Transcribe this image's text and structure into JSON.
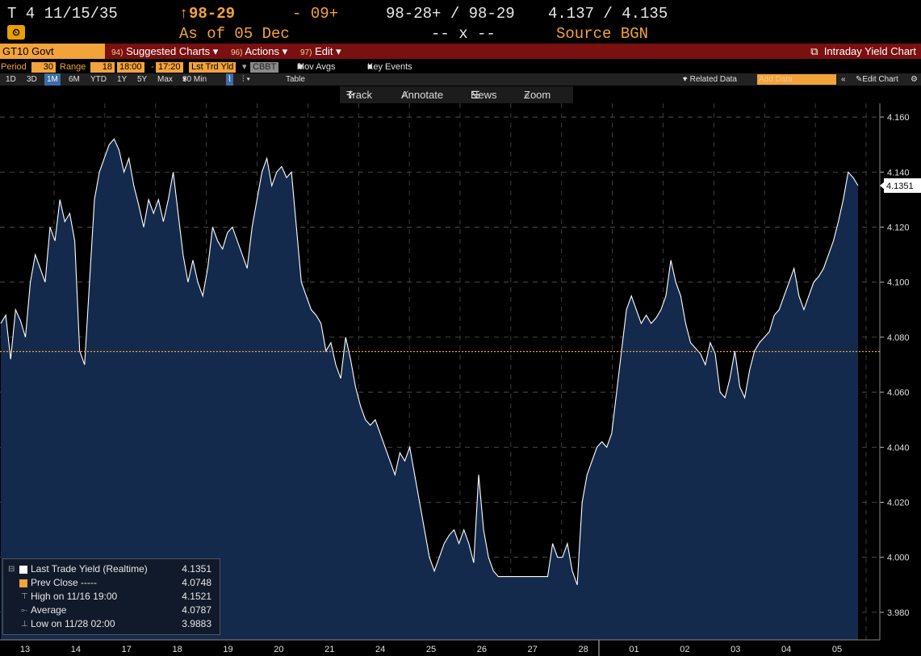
{
  "header": {
    "security": "T 4 11/15/35",
    "price": "98-29",
    "change": "09+",
    "bid_ask": "98-28+ / 98-29",
    "yield_bid_ask": "4.137 / 4.135",
    "as_of": "As of 05 Dec",
    "size": "-- x --",
    "source": "Source BGN",
    "up_arrow": "↑"
  },
  "function_bar": {
    "ticker": "GT10 Govt",
    "suggested_num": "94)",
    "suggested": "Suggested Charts",
    "actions_num": "96)",
    "actions": "Actions",
    "edit_num": "97)",
    "edit": "Edit",
    "title": "Intraday Yield Chart"
  },
  "params": {
    "period_label": "Period",
    "period_value": "30",
    "range_label": "Range",
    "range_value": "18",
    "range_from": "18:00",
    "range_to": "17:20",
    "field": "Lst Trd Yld",
    "source": "CBBT",
    "mov_avgs": "Mov Avgs",
    "key_events": "Key Events"
  },
  "timebar": {
    "items": [
      "1D",
      "3D",
      "1M",
      "6M",
      "YTD",
      "1Y",
      "5Y",
      "Max"
    ],
    "selected": "1M",
    "interval": "30 Min",
    "table": "Table",
    "related": "+ Related Data",
    "add_data": "Add Data",
    "edit_chart": "Edit Chart"
  },
  "tools": {
    "track": "Track",
    "annotate": "Annotate",
    "news": "News",
    "zoom": "Zoom"
  },
  "legend": {
    "last_label": "Last Trade Yield (Realtime)",
    "last_value": "4.1351",
    "prev_label": "Prev Close -----",
    "prev_value": "4.0748",
    "high_label": "High on 11/16 19:00",
    "high_value": "4.1521",
    "avg_label": "Average",
    "avg_value": "4.0787",
    "low_label": "Low on 11/28 02:00",
    "low_value": "3.9883"
  },
  "colors": {
    "line": "#ffffff",
    "fill": "#142a4d",
    "prev_close": "#f2a33a",
    "accent": "#f2a33a",
    "bar": "#7a1010"
  },
  "chart_data": {
    "type": "area",
    "ylim": [
      3.97,
      4.165
    ],
    "yticks": [
      3.98,
      4.0,
      4.02,
      4.04,
      4.06,
      4.08,
      4.1,
      4.12,
      4.14,
      4.16
    ],
    "x_labels": [
      "13",
      "14",
      "17",
      "18",
      "19",
      "20",
      "21",
      "24",
      "25",
      "26",
      "27",
      "28",
      "01",
      "02",
      "03",
      "04",
      "05"
    ],
    "prev_close": 4.0748,
    "last": 4.1351,
    "series": [
      {
        "values": [
          4.085,
          4.088,
          4.072,
          4.09,
          4.086,
          4.08,
          4.1,
          4.11,
          4.105,
          4.1,
          4.12,
          4.115,
          4.13,
          4.122,
          4.125,
          4.115,
          4.075,
          4.07,
          4.1,
          4.13,
          4.14,
          4.145,
          4.15,
          4.152,
          4.148,
          4.14,
          4.145,
          4.135,
          4.128,
          4.12,
          4.13,
          4.125,
          4.13,
          4.122,
          4.13,
          4.14,
          4.125,
          4.11,
          4.1,
          4.108,
          4.1,
          4.095,
          4.105,
          4.12,
          4.115,
          4.112,
          4.118,
          4.12,
          4.115,
          4.11,
          4.105,
          4.12,
          4.13,
          4.14,
          4.145,
          4.135,
          4.14,
          4.142,
          4.138,
          4.14,
          4.12,
          4.1,
          4.095,
          4.09,
          4.088,
          4.085,
          4.075,
          4.078,
          4.07,
          4.065,
          4.08,
          4.072,
          4.062,
          4.055,
          4.05,
          4.048,
          4.05,
          4.045,
          4.04,
          4.035,
          4.03,
          4.038,
          4.035,
          4.04,
          4.03,
          4.02,
          4.01,
          4.0,
          3.995,
          4.0,
          4.005,
          4.008,
          4.01,
          4.005,
          4.01,
          4.005,
          3.998,
          4.03,
          4.01,
          4.0,
          3.995,
          3.993,
          3.993,
          3.993,
          3.993,
          3.993,
          3.993,
          3.993,
          3.993,
          3.993,
          3.993,
          3.993,
          4.005,
          4.0,
          4.0,
          4.005,
          3.995,
          3.99,
          4.02,
          4.03,
          4.035,
          4.04,
          4.042,
          4.04,
          4.045,
          4.06,
          4.075,
          4.09,
          4.095,
          4.09,
          4.085,
          4.088,
          4.085,
          4.087,
          4.09,
          4.095,
          4.108,
          4.1,
          4.095,
          4.085,
          4.078,
          4.076,
          4.074,
          4.07,
          4.078,
          4.074,
          4.06,
          4.058,
          4.065,
          4.075,
          4.062,
          4.058,
          4.068,
          4.075,
          4.078,
          4.08,
          4.082,
          4.088,
          4.09,
          4.095,
          4.1,
          4.105,
          4.095,
          4.09,
          4.095,
          4.1,
          4.102,
          4.105,
          4.11,
          4.115,
          4.122,
          4.13,
          4.14,
          4.138,
          4.1351
        ]
      }
    ]
  }
}
